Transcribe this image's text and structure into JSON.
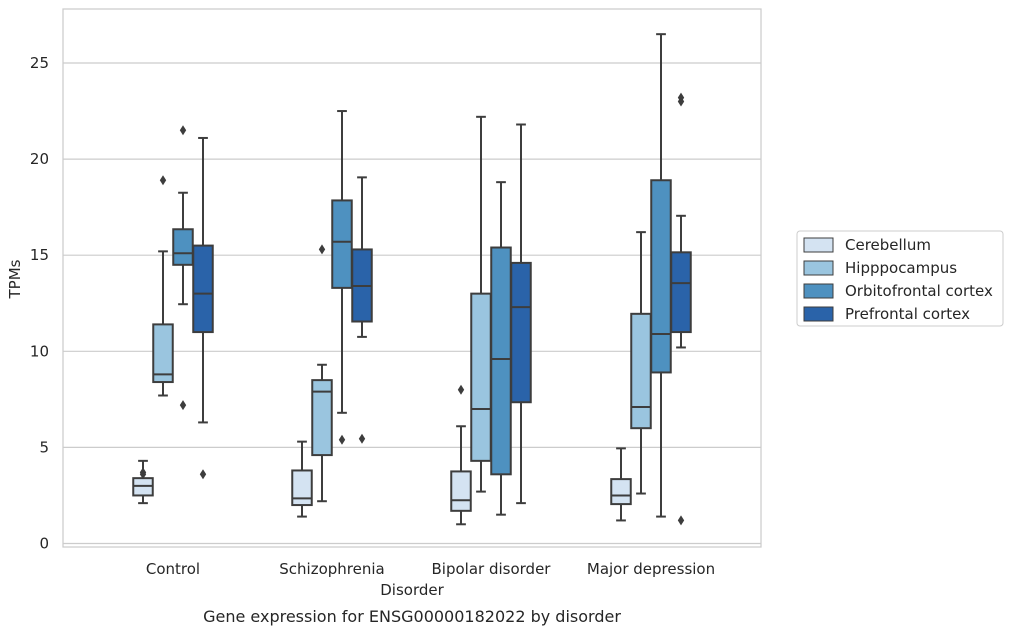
{
  "chart_data": {
    "type": "box",
    "caption": "Gene expression for ENSG00000182022 by disorder",
    "xlabel": "Disorder",
    "ylabel": "TPMs",
    "ylim": [
      -0.3,
      27.8
    ],
    "yticks": [
      0,
      5,
      10,
      15,
      20,
      25
    ],
    "grid": "horizontal",
    "legend_position": "right",
    "categories": [
      "Control",
      "Schizophrenia",
      "Bipolar disorder",
      "Major depression"
    ],
    "series": [
      {
        "name": "Cerebellum",
        "color": "#d4e3f2",
        "boxes": [
          {
            "whislo": 2.1,
            "q1": 2.5,
            "med": 3.0,
            "q3": 3.4,
            "whishi": 4.3,
            "fliers": [
              3.6,
              3.7
            ]
          },
          {
            "whislo": 1.4,
            "q1": 2.0,
            "med": 2.35,
            "q3": 3.8,
            "whishi": 5.3,
            "fliers": []
          },
          {
            "whislo": 1.0,
            "q1": 1.7,
            "med": 2.25,
            "q3": 3.75,
            "whishi": 6.1,
            "fliers": [
              8.0
            ]
          },
          {
            "whislo": 1.2,
            "q1": 2.05,
            "med": 2.5,
            "q3": 3.35,
            "whishi": 4.95,
            "fliers": []
          }
        ]
      },
      {
        "name": "Hipppocampus",
        "color": "#9ac5df",
        "boxes": [
          {
            "whislo": 7.7,
            "q1": 8.4,
            "med": 8.8,
            "q3": 11.4,
            "whishi": 15.2,
            "fliers": [
              18.9
            ]
          },
          {
            "whislo": 2.2,
            "q1": 4.6,
            "med": 7.9,
            "q3": 8.5,
            "whishi": 9.3,
            "fliers": [
              15.3
            ]
          },
          {
            "whislo": 2.7,
            "q1": 4.3,
            "med": 7.0,
            "q3": 13.0,
            "whishi": 22.2,
            "fliers": []
          },
          {
            "whislo": 2.6,
            "q1": 6.0,
            "med": 7.1,
            "q3": 11.95,
            "whishi": 16.2,
            "fliers": []
          }
        ]
      },
      {
        "name": "Orbitofrontal cortex",
        "color": "#4e91c0",
        "boxes": [
          {
            "whislo": 12.45,
            "q1": 14.5,
            "med": 15.1,
            "q3": 16.35,
            "whishi": 18.25,
            "fliers": [
              7.2,
              21.5
            ]
          },
          {
            "whislo": 6.8,
            "q1": 13.3,
            "med": 15.7,
            "q3": 17.85,
            "whishi": 22.5,
            "fliers": [
              5.4
            ]
          },
          {
            "whislo": 1.5,
            "q1": 3.6,
            "med": 9.6,
            "q3": 15.4,
            "whishi": 18.8,
            "fliers": []
          },
          {
            "whislo": 1.4,
            "q1": 8.9,
            "med": 10.9,
            "q3": 18.9,
            "whishi": 26.5,
            "fliers": []
          }
        ]
      },
      {
        "name": "Prefrontal cortex",
        "color": "#2a63a9",
        "boxes": [
          {
            "whislo": 6.3,
            "q1": 11.0,
            "med": 13.0,
            "q3": 15.5,
            "whishi": 21.1,
            "fliers": [
              3.6
            ]
          },
          {
            "whislo": 10.75,
            "q1": 11.55,
            "med": 13.4,
            "q3": 15.3,
            "whishi": 19.05,
            "fliers": [
              5.45
            ]
          },
          {
            "whislo": 2.1,
            "q1": 7.35,
            "med": 12.3,
            "q3": 14.6,
            "whishi": 21.8,
            "fliers": []
          },
          {
            "whislo": 10.2,
            "q1": 11.0,
            "med": 13.55,
            "q3": 15.15,
            "whishi": 17.05,
            "fliers": [
              1.2,
              23.0,
              23.2
            ]
          }
        ]
      }
    ]
  }
}
